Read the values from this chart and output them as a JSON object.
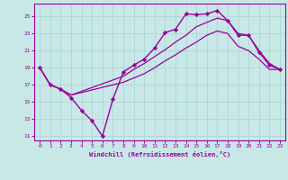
{
  "background_color": "#c8e8e8",
  "grid_color": "#b0d8d8",
  "line_color": "#990099",
  "marker_color": "#990099",
  "xlabel": "Windchill (Refroidissement éolien,°C)",
  "xlim": [
    -0.5,
    23.5
  ],
  "ylim": [
    10.5,
    26.5
  ],
  "yticks": [
    11,
    13,
    15,
    17,
    19,
    21,
    23,
    25
  ],
  "xticks": [
    0,
    1,
    2,
    3,
    4,
    5,
    6,
    7,
    8,
    9,
    10,
    11,
    12,
    13,
    14,
    15,
    16,
    17,
    18,
    19,
    20,
    21,
    22,
    23
  ],
  "series": [
    {
      "x": [
        0,
        1,
        2,
        3,
        4,
        5,
        6,
        7,
        8,
        9,
        10,
        11,
        12,
        13,
        14,
        15,
        16,
        17,
        18,
        19,
        20,
        21,
        22,
        23
      ],
      "y": [
        19,
        17,
        16.5,
        15.5,
        14.0,
        12.8,
        11.0,
        15.3,
        18.5,
        19.3,
        20.0,
        21.3,
        23.1,
        23.5,
        25.3,
        25.2,
        25.3,
        25.7,
        24.5,
        22.8,
        22.8,
        20.8,
        19.3,
        18.8
      ],
      "marker": true,
      "linewidth": 1.0
    },
    {
      "x": [
        0,
        1,
        2,
        3,
        8,
        9,
        10,
        11,
        12,
        13,
        14,
        15,
        16,
        17,
        18,
        19,
        20,
        21,
        22,
        23
      ],
      "y": [
        19,
        17,
        16.5,
        15.8,
        18.0,
        18.8,
        19.5,
        20.3,
        21.1,
        22.0,
        22.8,
        23.8,
        24.3,
        24.8,
        24.5,
        23.0,
        22.8,
        21.0,
        19.5,
        18.8
      ],
      "marker": false,
      "linewidth": 0.9
    },
    {
      "x": [
        0,
        1,
        2,
        3,
        8,
        9,
        10,
        11,
        12,
        13,
        14,
        15,
        16,
        17,
        18,
        19,
        20,
        21,
        22,
        23
      ],
      "y": [
        19,
        17,
        16.5,
        15.8,
        17.3,
        17.8,
        18.3,
        19.0,
        19.8,
        20.5,
        21.3,
        22.0,
        22.8,
        23.3,
        23.0,
        21.5,
        21.0,
        20.0,
        18.8,
        18.8
      ],
      "marker": false,
      "linewidth": 0.9
    }
  ]
}
